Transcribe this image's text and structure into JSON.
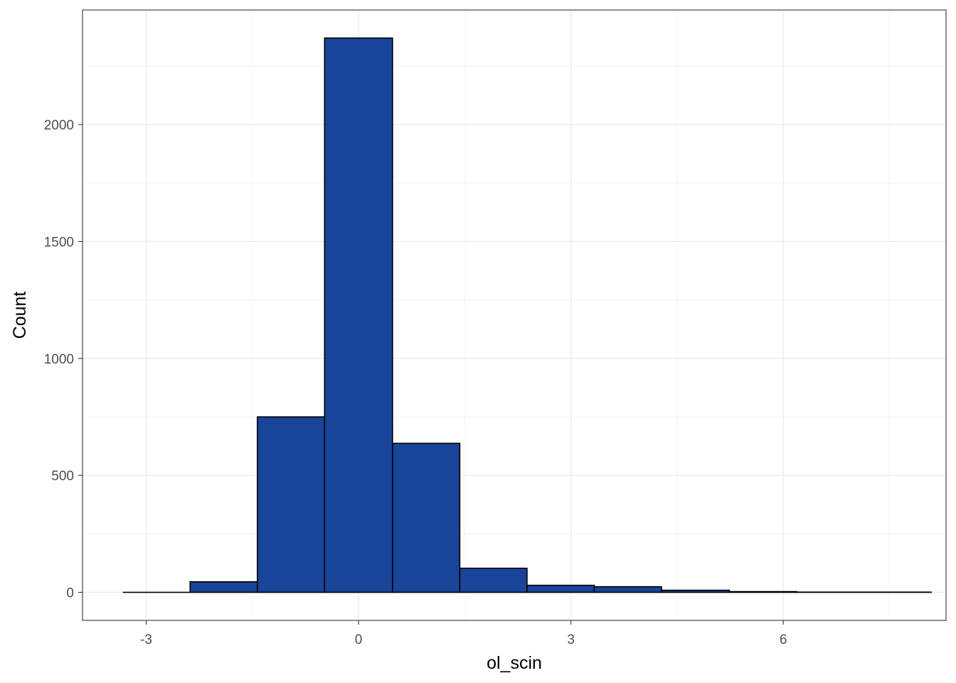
{
  "chart_data": {
    "type": "bar",
    "xlabel": "ol_scin",
    "ylabel": "Count",
    "title": "",
    "xlim": [
      -3.9,
      8.3
    ],
    "ylim": [
      -120,
      2490
    ],
    "x_ticks": [
      -3,
      0,
      3,
      6
    ],
    "x_tick_labels": [
      "-3",
      "0",
      "3",
      "6"
    ],
    "y_ticks": [
      0,
      500,
      1000,
      1500,
      2000
    ],
    "y_tick_labels": [
      "0",
      "500",
      "1000",
      "1500",
      "2000"
    ],
    "bin_width": 0.952,
    "bins": [
      {
        "x_min": -3.33,
        "x_max": -2.38,
        "count": 0
      },
      {
        "x_min": -2.38,
        "x_max": -1.43,
        "count": 45
      },
      {
        "x_min": -1.43,
        "x_max": -0.48,
        "count": 750
      },
      {
        "x_min": -0.48,
        "x_max": 0.48,
        "count": 2370
      },
      {
        "x_min": 0.48,
        "x_max": 1.43,
        "count": 637
      },
      {
        "x_min": 1.43,
        "x_max": 2.38,
        "count": 103
      },
      {
        "x_min": 2.38,
        "x_max": 3.33,
        "count": 30
      },
      {
        "x_min": 3.33,
        "x_max": 4.28,
        "count": 24
      },
      {
        "x_min": 4.28,
        "x_max": 5.24,
        "count": 9
      },
      {
        "x_min": 5.24,
        "x_max": 6.19,
        "count": 3
      },
      {
        "x_min": 6.19,
        "x_max": 7.14,
        "count": 1
      },
      {
        "x_min": 7.14,
        "x_max": 8.09,
        "count": 1
      }
    ],
    "grid": true,
    "legend": "none",
    "bar_fill": "#184499",
    "bar_stroke": "#000000",
    "panel_border": "#333333",
    "grid_major_color": "#ebebeb",
    "grid_minor_color": "#f4f4f4"
  }
}
